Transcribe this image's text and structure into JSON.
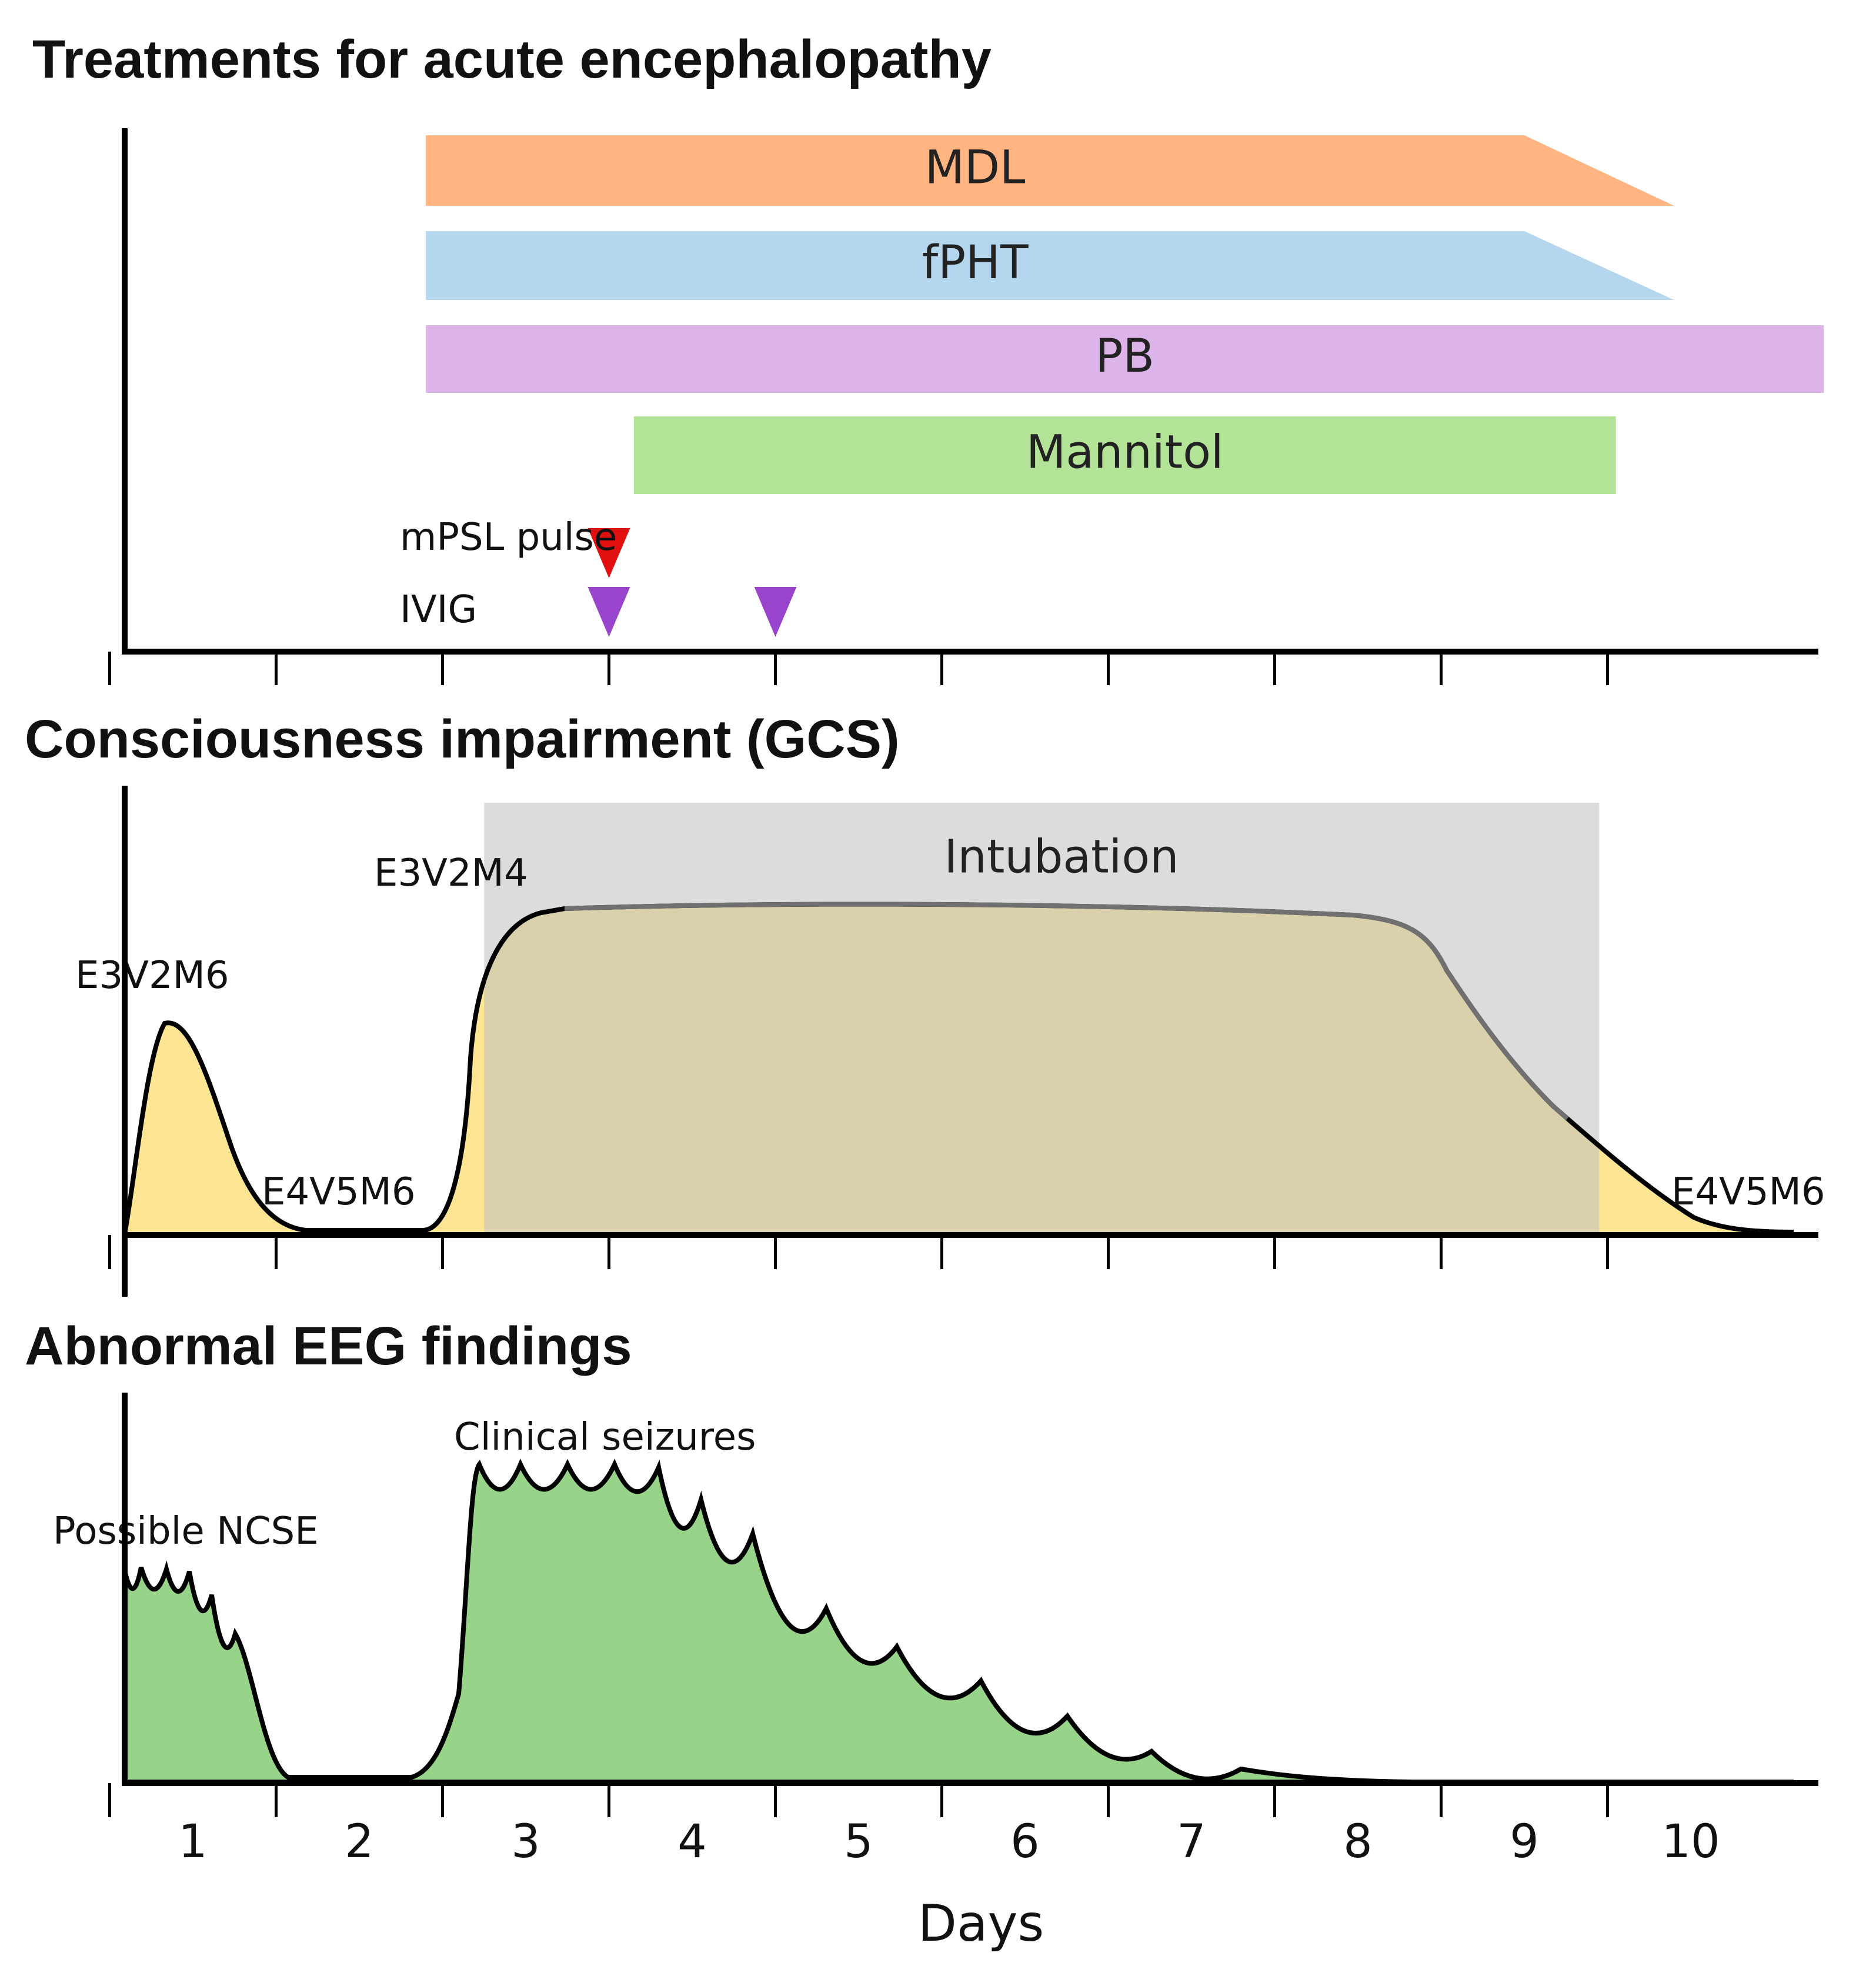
{
  "titles": {
    "treatments": "Treatments for acute encephalopathy",
    "gcs": "Consciousness impairment (GCS)",
    "eeg": "Abnormal EEG findings"
  },
  "treatments": [
    {
      "label": "MDL",
      "color": "#FFB482",
      "start": 2.4,
      "end": 9.0,
      "taper_end": 9.9
    },
    {
      "label": "fPHT",
      "color": "#B4D7EE",
      "start": 2.4,
      "end": 9.0,
      "taper_end": 9.9
    },
    {
      "label": "PB",
      "color": "#DDB4EA",
      "start": 2.4,
      "end": 10.8,
      "taper_end": 10.8
    },
    {
      "label": "Mannitol",
      "color": "#B2E396",
      "start": 3.65,
      "end": 9.55,
      "taper_end": 9.55
    }
  ],
  "markers": {
    "mpsl": {
      "label": "mPSL pulse",
      "color": "#E01010",
      "days": [
        3.5
      ]
    },
    "ivig": {
      "label": "IVIG",
      "color": "#9944CC",
      "days": [
        3.5,
        4.5
      ]
    }
  },
  "gcs": {
    "fill_color": "#FDE594",
    "intubation_color": "#BFBFBF",
    "intubation_label": "Intubation",
    "intubation_start": 2.75,
    "intubation_end": 9.45,
    "labels": [
      "E3V2M6",
      "E4V5M6",
      "E3V2M4",
      "E4V5M6"
    ]
  },
  "eeg": {
    "fill_color": "#98D38A",
    "labels": [
      "Possible NCSE",
      "Clinical seizures"
    ]
  },
  "x_axis": {
    "label": "Days",
    "ticks": [
      "1",
      "2",
      "3",
      "4",
      "5",
      "6",
      "7",
      "8",
      "9",
      "10"
    ]
  }
}
